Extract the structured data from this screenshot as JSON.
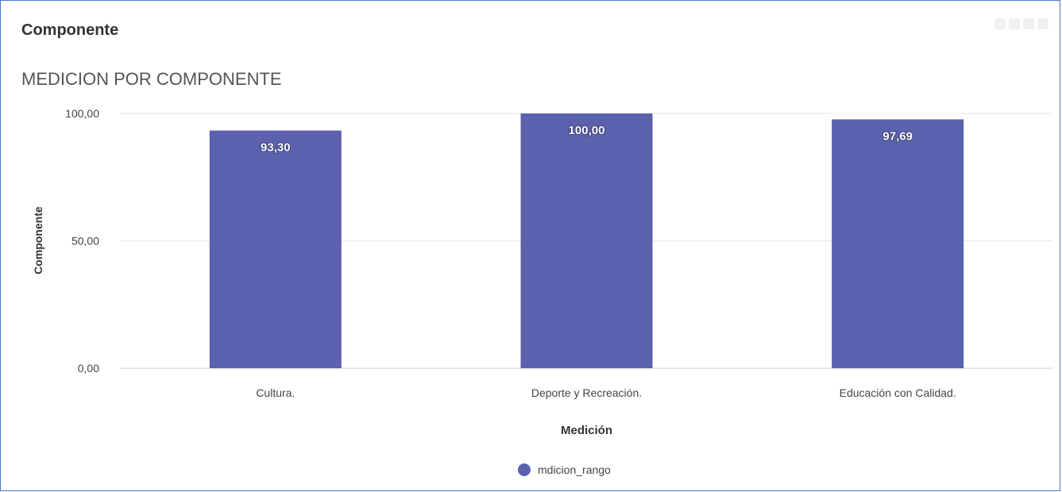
{
  "panel": {
    "title": "Componente",
    "toolbar_icons": [
      "menu-icon",
      "zoom-icon",
      "download-icon",
      "expand-icon"
    ]
  },
  "chart_data": {
    "type": "bar",
    "title": "MEDICION POR COMPONENTE",
    "xlabel": "Medición",
    "ylabel": "Componente",
    "categories": [
      "Cultura.",
      "Deporte y Recreación.",
      "Educación con Calidad."
    ],
    "series": [
      {
        "name": "mdicion_rango",
        "values": [
          93.3,
          100.0,
          97.69
        ],
        "labels": [
          "93,30",
          "100,00",
          "97,69"
        ]
      }
    ],
    "ylim": [
      0,
      100
    ],
    "yticks": [
      0,
      50,
      100
    ],
    "ytick_labels": [
      "0,00",
      "50,00",
      "100,00"
    ],
    "grid": true,
    "legend": "bottom-center",
    "colors": {
      "bar": "#5b61ad",
      "grid": "#e6e6e6",
      "axis": "#cfcfcf",
      "text": "#444444"
    }
  }
}
